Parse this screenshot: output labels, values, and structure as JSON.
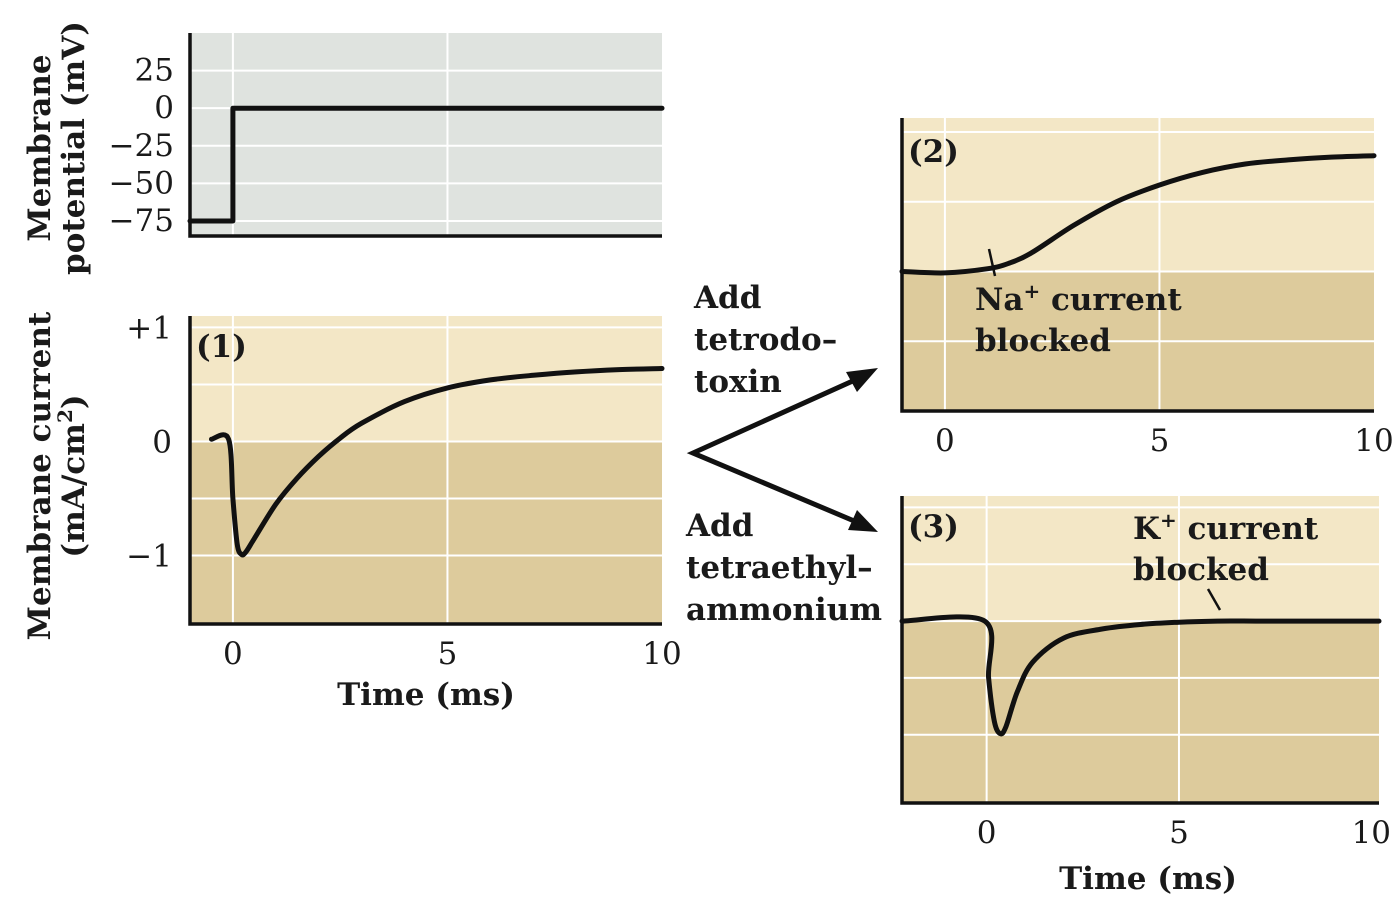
{
  "chart_data": [
    {
      "id": "membrane-potential",
      "type": "line",
      "ylabel_line1": "Membrane",
      "ylabel_line2": "potential (mV)",
      "ylim": [
        -85,
        50
      ],
      "xlim": [
        -1,
        10
      ],
      "yticks": [
        "25",
        "0",
        "−25",
        "−50",
        "−75"
      ],
      "ytick_values": [
        25,
        0,
        -25,
        -50,
        -75
      ],
      "series": [
        {
          "x": [
            -1,
            0,
            0,
            10
          ],
          "y": [
            -75,
            -75,
            0,
            0
          ]
        }
      ],
      "colors": {
        "background": "#dfe3df"
      }
    },
    {
      "id": "panel-1",
      "type": "line",
      "panel_label": "(1)",
      "ylabel_line1": "Membrane current",
      "ylabel_line2": "(mA/cm",
      "ylabel_sup": "2",
      "ylabel_close": ")",
      "ylim": [
        -1.6,
        1.1
      ],
      "xlim": [
        -1,
        10
      ],
      "yticks": [
        "+1",
        "0",
        "−1"
      ],
      "ytick_values": [
        1,
        0,
        -1
      ],
      "xticks": [
        "0",
        "5",
        "10"
      ],
      "xtick_values": [
        0,
        5,
        10
      ],
      "xlabel": "Time (ms)",
      "series": [
        {
          "x": [
            -0.5,
            -0.1,
            0,
            0.1,
            0.2,
            0.3,
            0.5,
            1,
            1.5,
            2,
            2.5,
            3,
            4,
            5,
            6,
            7,
            8,
            9,
            10
          ],
          "y": [
            0.02,
            0.02,
            -0.5,
            -0.9,
            -0.99,
            -0.97,
            -0.85,
            -0.55,
            -0.32,
            -0.13,
            0.03,
            0.16,
            0.35,
            0.47,
            0.54,
            0.58,
            0.61,
            0.63,
            0.64
          ]
        }
      ],
      "colors": {
        "upper": "#f3e7c6",
        "lower": "#ddcb9c"
      }
    },
    {
      "id": "panel-2",
      "type": "line",
      "panel_label": "(2)",
      "ylim": [
        -1,
        1.1
      ],
      "xlim": [
        -1,
        10
      ],
      "xticks": [
        "0",
        "5",
        "10"
      ],
      "xtick_values": [
        0,
        5,
        10
      ],
      "series": [
        {
          "x": [
            -1,
            0,
            1,
            1.5,
            2,
            3,
            4,
            5,
            6,
            7,
            8,
            9,
            10
          ],
          "y": [
            0,
            -0.01,
            0.02,
            0.06,
            0.13,
            0.33,
            0.5,
            0.62,
            0.71,
            0.77,
            0.8,
            0.82,
            0.83
          ]
        }
      ],
      "annotation": {
        "text_line1": "Na",
        "sup": "+",
        "text_line1_rest": " current",
        "text_line2": "blocked"
      },
      "colors": {
        "upper": "#f3e7c6",
        "lower": "#ddcb9c"
      }
    },
    {
      "id": "panel-3",
      "type": "line",
      "panel_label": "(3)",
      "ylim": [
        -1.6,
        1.1
      ],
      "xlim": [
        -2.2,
        10.2
      ],
      "xticks": [
        "0",
        "5",
        "10"
      ],
      "xtick_values": [
        0,
        5,
        10
      ],
      "xlabel": "Time (ms)",
      "series": [
        {
          "x": [
            -2.2,
            -0.05,
            0.05,
            0.2,
            0.35,
            0.5,
            0.8,
            1.2,
            2,
            3,
            4,
            5,
            6,
            7,
            8,
            10.2
          ],
          "y": [
            0,
            0,
            -0.5,
            -0.88,
            -0.99,
            -0.93,
            -0.62,
            -0.36,
            -0.15,
            -0.07,
            -0.03,
            -0.01,
            0,
            0,
            0,
            0
          ]
        }
      ],
      "annotation": {
        "text_line1": "K",
        "sup": "+",
        "text_line1_rest": " current",
        "text_line2": "blocked"
      },
      "colors": {
        "upper": "#f3e7c6",
        "lower": "#ddcb9c"
      }
    }
  ],
  "labels": {
    "ttx_line1": "Add",
    "ttx_line2": "tetrodo–",
    "ttx_line3": "toxin",
    "tea_line1": "Add",
    "tea_line2": "tetraethyl–",
    "tea_line3": "ammonium"
  }
}
